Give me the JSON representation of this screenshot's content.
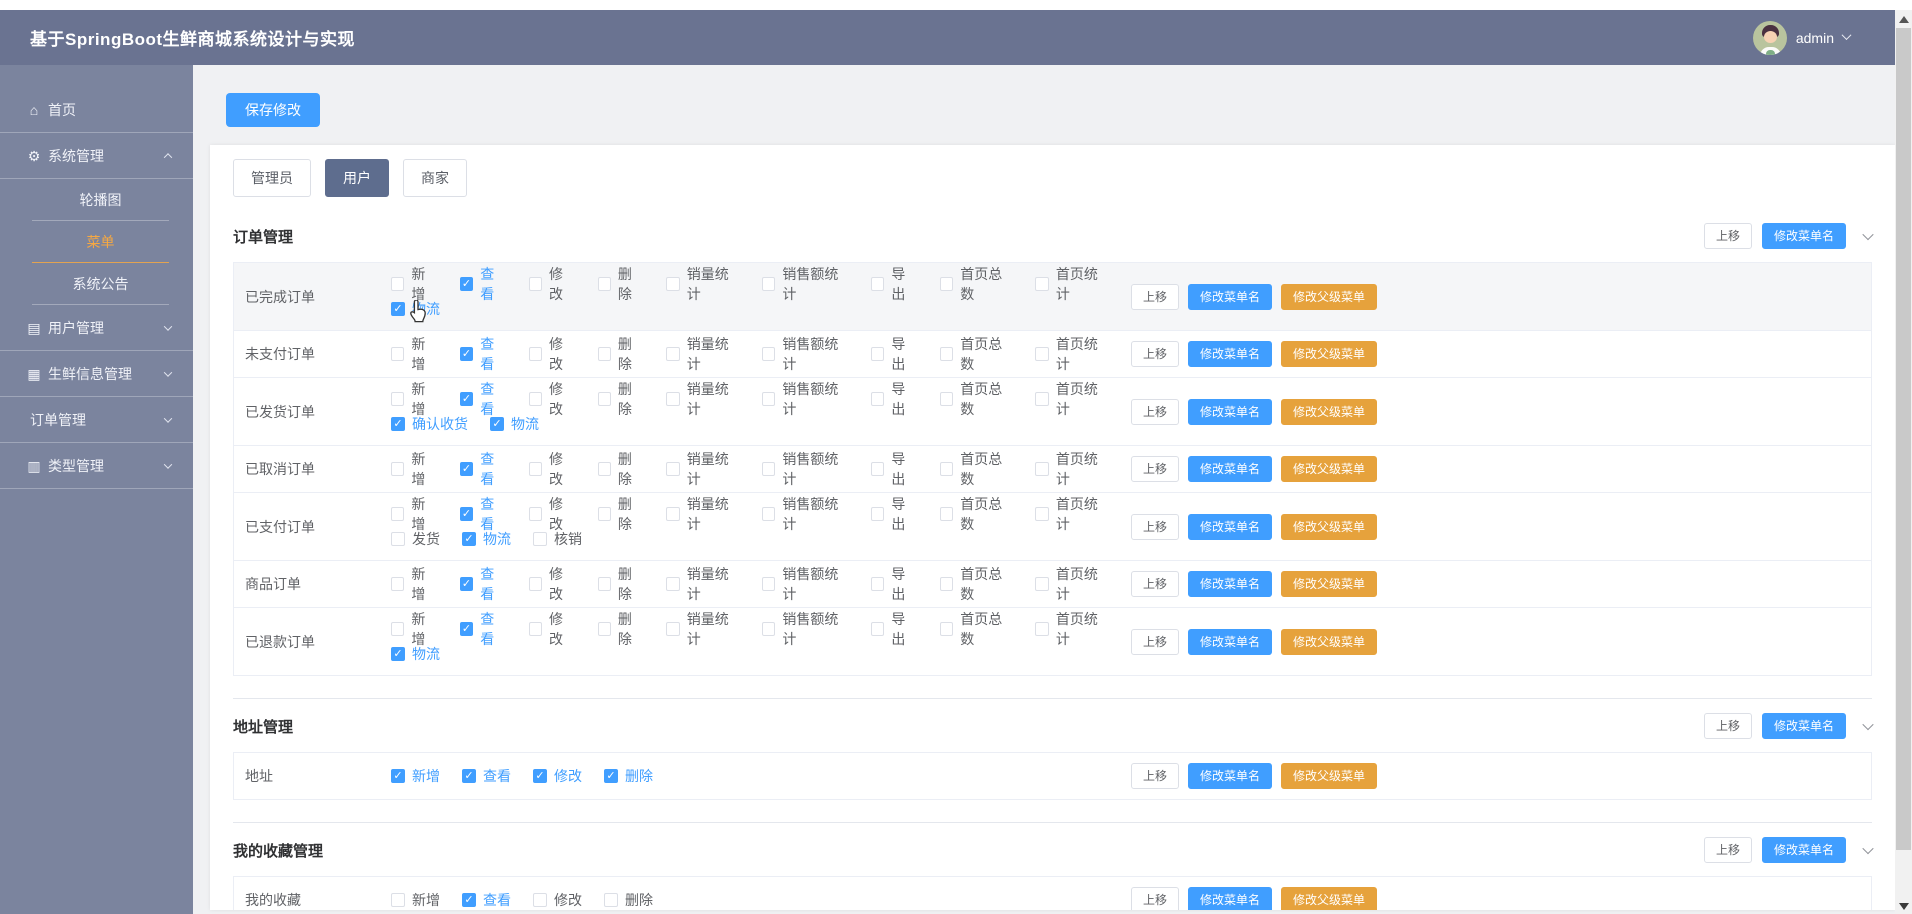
{
  "header": {
    "title": "基于SpringBoot生鲜商城系统设计与实现",
    "user_name": "admin",
    "avatar_icon": "user-avatar",
    "user_chevron_icon": "chevron-down-icon"
  },
  "sidebar": [
    {
      "label": "首页",
      "icon": "home-icon",
      "state": null
    },
    {
      "label": "系统管理",
      "icon": "gear-icon",
      "state": "expanded",
      "children": [
        {
          "label": "轮播图",
          "active": false
        },
        {
          "label": "菜单",
          "active": true
        },
        {
          "label": "系统公告",
          "active": false
        }
      ]
    },
    {
      "label": "用户管理",
      "icon": "users-icon",
      "state": "collapsed"
    },
    {
      "label": "生鲜信息管理",
      "icon": "grid-icon",
      "state": "collapsed"
    },
    {
      "label": "订单管理",
      "icon": null,
      "state": "collapsed"
    },
    {
      "label": "类型管理",
      "icon": "category-icon",
      "state": "collapsed"
    }
  ],
  "icon_glyphs": {
    "home-icon": "⌂",
    "gear-icon": "⚙",
    "users-icon": "▤",
    "grid-icon": "▦",
    "category-icon": "▥"
  },
  "toolbar": {
    "save_label": "保存修改"
  },
  "tabs": [
    {
      "label": "管理员",
      "active": false
    },
    {
      "label": "用户",
      "active": true
    },
    {
      "label": "商家",
      "active": false
    }
  ],
  "actions": {
    "move_up": "上移",
    "rename_menu": "修改菜单名",
    "change_parent_menu": "修改父级菜单"
  },
  "colors": {
    "accent_blue": "#409eff",
    "accent_orange": "#e6a23c",
    "header_bg": "#6a7391",
    "sidebar_bg": "#7b849e",
    "active_menu": "#f5a843",
    "active_tab_bg": "#5e6d8e"
  },
  "sections": [
    {
      "title": "订单管理",
      "rows": [
        {
          "label": "已完成订单",
          "hovered": true,
          "perm_lines": [
            [
              {
                "label": "新增",
                "checked": false
              },
              {
                "label": "查看",
                "checked": true
              },
              {
                "label": "修改",
                "checked": false
              },
              {
                "label": "删除",
                "checked": false
              },
              {
                "label": "销量统计",
                "checked": false
              },
              {
                "label": "销售额统计",
                "checked": false
              },
              {
                "label": "导出",
                "checked": false
              },
              {
                "label": "首页总数",
                "checked": false
              },
              {
                "label": "首页统计",
                "checked": false
              }
            ],
            [
              {
                "label": "物流",
                "checked": true
              }
            ]
          ]
        },
        {
          "label": "未支付订单",
          "hovered": false,
          "perm_lines": [
            [
              {
                "label": "新增",
                "checked": false
              },
              {
                "label": "查看",
                "checked": true
              },
              {
                "label": "修改",
                "checked": false
              },
              {
                "label": "删除",
                "checked": false
              },
              {
                "label": "销量统计",
                "checked": false
              },
              {
                "label": "销售额统计",
                "checked": false
              },
              {
                "label": "导出",
                "checked": false
              },
              {
                "label": "首页总数",
                "checked": false
              },
              {
                "label": "首页统计",
                "checked": false
              }
            ]
          ]
        },
        {
          "label": "已发货订单",
          "hovered": false,
          "perm_lines": [
            [
              {
                "label": "新增",
                "checked": false
              },
              {
                "label": "查看",
                "checked": true
              },
              {
                "label": "修改",
                "checked": false
              },
              {
                "label": "删除",
                "checked": false
              },
              {
                "label": "销量统计",
                "checked": false
              },
              {
                "label": "销售额统计",
                "checked": false
              },
              {
                "label": "导出",
                "checked": false
              },
              {
                "label": "首页总数",
                "checked": false
              },
              {
                "label": "首页统计",
                "checked": false
              }
            ],
            [
              {
                "label": "确认收货",
                "checked": true
              },
              {
                "label": "物流",
                "checked": true
              }
            ]
          ]
        },
        {
          "label": "已取消订单",
          "hovered": false,
          "perm_lines": [
            [
              {
                "label": "新增",
                "checked": false
              },
              {
                "label": "查看",
                "checked": true
              },
              {
                "label": "修改",
                "checked": false
              },
              {
                "label": "删除",
                "checked": false
              },
              {
                "label": "销量统计",
                "checked": false
              },
              {
                "label": "销售额统计",
                "checked": false
              },
              {
                "label": "导出",
                "checked": false
              },
              {
                "label": "首页总数",
                "checked": false
              },
              {
                "label": "首页统计",
                "checked": false
              }
            ]
          ]
        },
        {
          "label": "已支付订单",
          "hovered": false,
          "perm_lines": [
            [
              {
                "label": "新增",
                "checked": false
              },
              {
                "label": "查看",
                "checked": true
              },
              {
                "label": "修改",
                "checked": false
              },
              {
                "label": "删除",
                "checked": false
              },
              {
                "label": "销量统计",
                "checked": false
              },
              {
                "label": "销售额统计",
                "checked": false
              },
              {
                "label": "导出",
                "checked": false
              },
              {
                "label": "首页总数",
                "checked": false
              },
              {
                "label": "首页统计",
                "checked": false
              }
            ],
            [
              {
                "label": "发货",
                "checked": false
              },
              {
                "label": "物流",
                "checked": true
              },
              {
                "label": "核销",
                "checked": false
              }
            ]
          ]
        },
        {
          "label": "商品订单",
          "hovered": false,
          "perm_lines": [
            [
              {
                "label": "新增",
                "checked": false
              },
              {
                "label": "查看",
                "checked": true
              },
              {
                "label": "修改",
                "checked": false
              },
              {
                "label": "删除",
                "checked": false
              },
              {
                "label": "销量统计",
                "checked": false
              },
              {
                "label": "销售额统计",
                "checked": false
              },
              {
                "label": "导出",
                "checked": false
              },
              {
                "label": "首页总数",
                "checked": false
              },
              {
                "label": "首页统计",
                "checked": false
              }
            ]
          ]
        },
        {
          "label": "已退款订单",
          "hovered": false,
          "perm_lines": [
            [
              {
                "label": "新增",
                "checked": false
              },
              {
                "label": "查看",
                "checked": true
              },
              {
                "label": "修改",
                "checked": false
              },
              {
                "label": "删除",
                "checked": false
              },
              {
                "label": "销量统计",
                "checked": false
              },
              {
                "label": "销售额统计",
                "checked": false
              },
              {
                "label": "导出",
                "checked": false
              },
              {
                "label": "首页总数",
                "checked": false
              },
              {
                "label": "首页统计",
                "checked": false
              }
            ],
            [
              {
                "label": "物流",
                "checked": true
              }
            ]
          ]
        }
      ]
    },
    {
      "title": "地址管理",
      "rows": [
        {
          "label": "地址",
          "hovered": false,
          "perm_lines": [
            [
              {
                "label": "新增",
                "checked": true
              },
              {
                "label": "查看",
                "checked": true
              },
              {
                "label": "修改",
                "checked": true
              },
              {
                "label": "删除",
                "checked": true
              }
            ]
          ]
        }
      ]
    },
    {
      "title": "我的收藏管理",
      "rows": [
        {
          "label": "我的收藏",
          "hovered": false,
          "perm_lines": [
            [
              {
                "label": "新增",
                "checked": false
              },
              {
                "label": "查看",
                "checked": true
              },
              {
                "label": "修改",
                "checked": false
              },
              {
                "label": "删除",
                "checked": false
              }
            ]
          ]
        }
      ]
    }
  ]
}
